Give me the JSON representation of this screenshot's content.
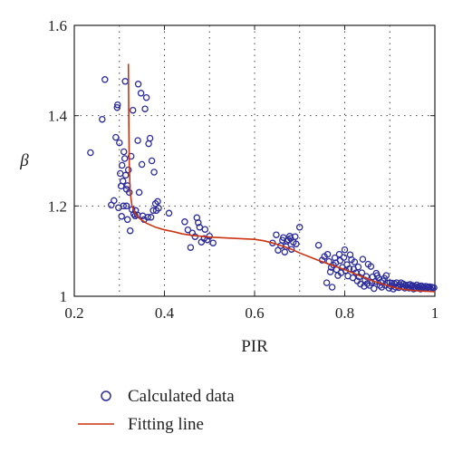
{
  "chart_data": {
    "type": "scatter",
    "title": "",
    "xlabel": "PIR",
    "ylabel": "β",
    "xlim": [
      0.2,
      1.0
    ],
    "ylim": [
      1.0,
      1.6
    ],
    "xticks": [
      0.2,
      0.4,
      0.6,
      0.8,
      1.0
    ],
    "xtick_labels": [
      "0.2",
      "0.4",
      "0.6",
      "0.8",
      "1"
    ],
    "yticks": [
      1.0,
      1.2,
      1.4,
      1.6
    ],
    "ytick_labels": [
      "1",
      "1.2",
      "1.4",
      "1.6"
    ],
    "grid": true,
    "legend_position": "below-plot",
    "series": [
      {
        "name": "Calculated data",
        "kind": "scatter",
        "marker": "open-circle",
        "color": "#2b2b9a",
        "points": [
          [
            0.236,
            1.318
          ],
          [
            0.262,
            1.392
          ],
          [
            0.268,
            1.48
          ],
          [
            0.282,
            1.202
          ],
          [
            0.288,
            1.212
          ],
          [
            0.292,
            1.352
          ],
          [
            0.295,
            1.418
          ],
          [
            0.296,
            1.424
          ],
          [
            0.298,
            1.196
          ],
          [
            0.3,
            1.34
          ],
          [
            0.302,
            1.272
          ],
          [
            0.304,
            1.244
          ],
          [
            0.305,
            1.177
          ],
          [
            0.306,
            1.29
          ],
          [
            0.308,
            1.255
          ],
          [
            0.309,
            1.2
          ],
          [
            0.31,
            1.32
          ],
          [
            0.312,
            1.305
          ],
          [
            0.313,
            1.476
          ],
          [
            0.314,
            1.268
          ],
          [
            0.316,
            1.2
          ],
          [
            0.316,
            1.237
          ],
          [
            0.318,
            1.245
          ],
          [
            0.318,
            1.17
          ],
          [
            0.32,
            1.28
          ],
          [
            0.322,
            1.23
          ],
          [
            0.324,
            1.145
          ],
          [
            0.326,
            1.31
          ],
          [
            0.328,
            1.192
          ],
          [
            0.33,
            1.412
          ],
          [
            0.332,
            1.182
          ],
          [
            0.335,
            1.178
          ],
          [
            0.336,
            1.19
          ],
          [
            0.34,
            1.18
          ],
          [
            0.341,
            1.345
          ],
          [
            0.342,
            1.47
          ],
          [
            0.344,
            1.23
          ],
          [
            0.348,
            1.45
          ],
          [
            0.35,
            1.292
          ],
          [
            0.352,
            1.178
          ],
          [
            0.355,
            1.17
          ],
          [
            0.357,
            1.415
          ],
          [
            0.36,
            1.44
          ],
          [
            0.363,
            1.175
          ],
          [
            0.365,
            1.338
          ],
          [
            0.368,
            1.35
          ],
          [
            0.37,
            1.175
          ],
          [
            0.372,
            1.3
          ],
          [
            0.375,
            1.19
          ],
          [
            0.377,
            1.275
          ],
          [
            0.38,
            1.205
          ],
          [
            0.382,
            1.19
          ],
          [
            0.385,
            1.21
          ],
          [
            0.387,
            1.195
          ],
          [
            0.41,
            1.184
          ],
          [
            0.445,
            1.165
          ],
          [
            0.452,
            1.147
          ],
          [
            0.458,
            1.108
          ],
          [
            0.462,
            1.14
          ],
          [
            0.468,
            1.132
          ],
          [
            0.472,
            1.174
          ],
          [
            0.475,
            1.163
          ],
          [
            0.478,
            1.153
          ],
          [
            0.482,
            1.12
          ],
          [
            0.488,
            1.128
          ],
          [
            0.49,
            1.148
          ],
          [
            0.495,
            1.125
          ],
          [
            0.5,
            1.133
          ],
          [
            0.508,
            1.118
          ],
          [
            0.64,
            1.118
          ],
          [
            0.648,
            1.136
          ],
          [
            0.652,
            1.102
          ],
          [
            0.658,
            1.112
          ],
          [
            0.662,
            1.124
          ],
          [
            0.664,
            1.13
          ],
          [
            0.667,
            1.098
          ],
          [
            0.67,
            1.11
          ],
          [
            0.672,
            1.122
          ],
          [
            0.675,
            1.125
          ],
          [
            0.678,
            1.133
          ],
          [
            0.68,
            1.128
          ],
          [
            0.682,
            1.104
          ],
          [
            0.686,
            1.12
          ],
          [
            0.69,
            1.132
          ],
          [
            0.692,
            1.116
          ],
          [
            0.7,
            1.153
          ],
          [
            0.742,
            1.113
          ],
          [
            0.75,
            1.08
          ],
          [
            0.755,
            1.088
          ],
          [
            0.76,
            1.03
          ],
          [
            0.762,
            1.093
          ],
          [
            0.765,
            1.077
          ],
          [
            0.768,
            1.054
          ],
          [
            0.77,
            1.064
          ],
          [
            0.772,
            1.02
          ],
          [
            0.775,
            1.069
          ],
          [
            0.778,
            1.085
          ],
          [
            0.78,
            1.074
          ],
          [
            0.782,
            1.059
          ],
          [
            0.785,
            1.046
          ],
          [
            0.788,
            1.093
          ],
          [
            0.79,
            1.079
          ],
          [
            0.792,
            1.052
          ],
          [
            0.795,
            1.064
          ],
          [
            0.798,
            1.086
          ],
          [
            0.8,
            1.103
          ],
          [
            0.802,
            1.057
          ],
          [
            0.805,
            1.07
          ],
          [
            0.807,
            1.045
          ],
          [
            0.81,
            1.061
          ],
          [
            0.812,
            1.092
          ],
          [
            0.815,
            1.081
          ],
          [
            0.818,
            1.041
          ],
          [
            0.82,
            1.06
          ],
          [
            0.822,
            1.076
          ],
          [
            0.825,
            1.052
          ],
          [
            0.828,
            1.034
          ],
          [
            0.83,
            1.065
          ],
          [
            0.832,
            1.043
          ],
          [
            0.835,
            1.027
          ],
          [
            0.838,
            1.052
          ],
          [
            0.84,
            1.082
          ],
          [
            0.843,
            1.022
          ],
          [
            0.845,
            1.036
          ],
          [
            0.848,
            1.044
          ],
          [
            0.85,
            1.028
          ],
          [
            0.852,
            1.071
          ],
          [
            0.855,
            1.024
          ],
          [
            0.858,
            1.066
          ],
          [
            0.86,
            1.03
          ],
          [
            0.862,
            1.043
          ],
          [
            0.865,
            1.017
          ],
          [
            0.868,
            1.033
          ],
          [
            0.87,
            1.051
          ],
          [
            0.872,
            1.046
          ],
          [
            0.875,
            1.04
          ],
          [
            0.878,
            1.024
          ],
          [
            0.88,
            1.031
          ],
          [
            0.882,
            1.02
          ],
          [
            0.885,
            1.034
          ],
          [
            0.888,
            1.04
          ],
          [
            0.89,
            1.024
          ],
          [
            0.892,
            1.046
          ],
          [
            0.895,
            1.029
          ],
          [
            0.898,
            1.018
          ],
          [
            0.9,
            1.03
          ],
          [
            0.903,
            1.022
          ],
          [
            0.905,
            1.029
          ],
          [
            0.908,
            1.016
          ],
          [
            0.91,
            1.028
          ],
          [
            0.913,
            1.02
          ],
          [
            0.915,
            1.03
          ],
          [
            0.918,
            1.022
          ],
          [
            0.92,
            1.019
          ],
          [
            0.922,
            1.026
          ],
          [
            0.925,
            1.03
          ],
          [
            0.928,
            1.021
          ],
          [
            0.93,
            1.027
          ],
          [
            0.933,
            1.018
          ],
          [
            0.935,
            1.024
          ],
          [
            0.938,
            1.02
          ],
          [
            0.94,
            1.025
          ],
          [
            0.943,
            1.018
          ],
          [
            0.945,
            1.026
          ],
          [
            0.948,
            1.021
          ],
          [
            0.95,
            1.024
          ],
          [
            0.953,
            1.016
          ],
          [
            0.955,
            1.022
          ],
          [
            0.958,
            1.018
          ],
          [
            0.96,
            1.025
          ],
          [
            0.963,
            1.019
          ],
          [
            0.965,
            1.022
          ],
          [
            0.968,
            1.016
          ],
          [
            0.97,
            1.023
          ],
          [
            0.973,
            1.019
          ],
          [
            0.975,
            1.021
          ],
          [
            0.978,
            1.017
          ],
          [
            0.98,
            1.022
          ],
          [
            0.983,
            1.018
          ],
          [
            0.985,
            1.02
          ],
          [
            0.988,
            1.021
          ],
          [
            0.99,
            1.017
          ],
          [
            0.993,
            1.02
          ],
          [
            0.995,
            1.018
          ],
          [
            0.998,
            1.019
          ]
        ]
      },
      {
        "name": "Fitting line",
        "kind": "line",
        "color": "#cc3311",
        "points": [
          [
            0.32,
            1.515
          ],
          [
            0.321,
            1.38
          ],
          [
            0.322,
            1.29
          ],
          [
            0.324,
            1.23
          ],
          [
            0.328,
            1.2
          ],
          [
            0.335,
            1.183
          ],
          [
            0.345,
            1.172
          ],
          [
            0.36,
            1.162
          ],
          [
            0.38,
            1.153
          ],
          [
            0.4,
            1.147
          ],
          [
            0.42,
            1.143
          ],
          [
            0.44,
            1.138
          ],
          [
            0.46,
            1.135
          ],
          [
            0.48,
            1.133
          ],
          [
            0.5,
            1.131
          ],
          [
            0.52,
            1.13
          ],
          [
            0.54,
            1.129
          ],
          [
            0.56,
            1.128
          ],
          [
            0.58,
            1.127
          ],
          [
            0.6,
            1.126
          ],
          [
            0.62,
            1.123
          ],
          [
            0.64,
            1.118
          ],
          [
            0.66,
            1.112
          ],
          [
            0.68,
            1.105
          ],
          [
            0.7,
            1.096
          ],
          [
            0.72,
            1.088
          ],
          [
            0.74,
            1.08
          ],
          [
            0.76,
            1.073
          ],
          [
            0.78,
            1.066
          ],
          [
            0.8,
            1.059
          ],
          [
            0.82,
            1.051
          ],
          [
            0.84,
            1.043
          ],
          [
            0.86,
            1.035
          ],
          [
            0.88,
            1.028
          ],
          [
            0.9,
            1.022
          ],
          [
            0.92,
            1.017
          ],
          [
            0.94,
            1.014
          ],
          [
            0.96,
            1.012
          ],
          [
            0.98,
            1.011
          ],
          [
            1.0,
            1.01
          ]
        ]
      }
    ]
  },
  "legend": {
    "items": [
      {
        "label": "Calculated data",
        "symbol": "open-circle"
      },
      {
        "label": "Fitting line",
        "symbol": "line"
      }
    ]
  }
}
